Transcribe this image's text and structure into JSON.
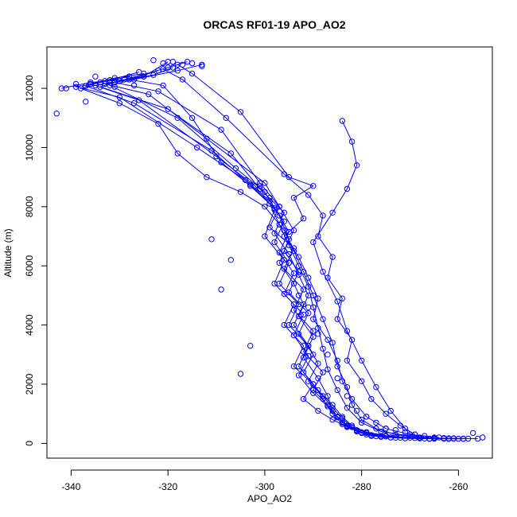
{
  "chart_data": {
    "type": "scatter",
    "title": "ORCAS RF01-19 APO_AO2",
    "xlabel": "APO_AO2",
    "ylabel": "Altitude (m)",
    "xlim": [
      -345,
      -253
    ],
    "ylim": [
      -500,
      13400
    ],
    "x_ticks": [
      -340,
      -320,
      -300,
      -280,
      -260
    ],
    "y_ticks": [
      0,
      2000,
      4000,
      6000,
      8000,
      10000,
      12000
    ],
    "x_tick_labels": [
      "-340",
      "-320",
      "-300",
      "-280",
      "-260"
    ],
    "y_tick_labels": [
      "0",
      "2000",
      "4000",
      "6000",
      "8000",
      "10000",
      "12000"
    ],
    "grid": false,
    "legend": "none",
    "series_color": "#0000ff",
    "marker": "open-circle",
    "connected": true,
    "series": [
      {
        "x": [
          -320,
          -325,
          -335,
          -338,
          -330,
          -322,
          -318,
          -312,
          -305,
          -300,
          -296,
          -294,
          -292,
          -290,
          -288,
          -286,
          -285,
          -283,
          -282,
          -280,
          -277,
          -273,
          -268,
          -262
        ],
        "y": [
          12900,
          12400,
          12100,
          12000,
          11500,
          10800,
          9800,
          9000,
          8500,
          8000,
          7200,
          6500,
          5800,
          5000,
          4200,
          3400,
          2600,
          1900,
          1300,
          800,
          500,
          300,
          200,
          150
        ]
      },
      {
        "x": [
          -342,
          -336,
          -328,
          -321,
          -315,
          -309,
          -303,
          -299,
          -297,
          -295,
          -293,
          -291,
          -290,
          -289,
          -288,
          -287,
          -285,
          -283,
          -280,
          -276,
          -270,
          -265,
          -258
        ],
        "y": [
          12000,
          12200,
          12300,
          12100,
          11000,
          9500,
          8700,
          8100,
          7400,
          6700,
          6000,
          5300,
          4600,
          3900,
          3200,
          2500,
          1800,
          1200,
          700,
          400,
          250,
          180,
          160
        ]
      },
      {
        "x": [
          -318,
          -315,
          -305,
          -295,
          -290,
          -294,
          -292,
          -296,
          -293,
          -291,
          -289,
          -290,
          -287,
          -285,
          -284,
          -282,
          -279,
          -275,
          -270,
          -264
        ],
        "y": [
          12800,
          12500,
          11200,
          9000,
          8700,
          8300,
          7600,
          7000,
          6300,
          5600,
          4900,
          4200,
          3500,
          2800,
          2100,
          1500,
          900,
          500,
          300,
          200
        ]
      },
      {
        "x": [
          -322,
          -328,
          -333,
          -324,
          -312,
          -300,
          -297,
          -299,
          -294,
          -296,
          -292,
          -294,
          -290,
          -292,
          -288,
          -290,
          -287,
          -285,
          -283,
          -281,
          -278,
          -274,
          -268,
          -262,
          -256
        ],
        "y": [
          12600,
          12300,
          12150,
          11800,
          10300,
          8800,
          8000,
          7300,
          6600,
          5900,
          5200,
          4500,
          3800,
          3100,
          2400,
          1800,
          1300,
          900,
          600,
          400,
          250,
          200,
          180,
          170,
          160
        ]
      },
      {
        "x": [
          -316,
          -320,
          -330,
          -334,
          -320,
          -307,
          -301,
          -296,
          -298,
          -295,
          -293,
          -291,
          -293,
          -290,
          -292,
          -289,
          -287,
          -286,
          -284,
          -281,
          -279,
          -276,
          -271,
          -266
        ],
        "y": [
          12900,
          12700,
          12250,
          12050,
          11300,
          9800,
          8600,
          7800,
          7100,
          6400,
          5700,
          5000,
          4300,
          3600,
          2900,
          2200,
          1600,
          1100,
          700,
          450,
          300,
          220,
          170,
          150
        ]
      },
      {
        "x": [
          -325,
          -331,
          -336,
          -326,
          -310,
          -302,
          -298,
          -300,
          -296,
          -298,
          -294,
          -296,
          -292,
          -294,
          -290,
          -292,
          -289,
          -286,
          -283,
          -280,
          -276,
          -272,
          -266,
          -259
        ],
        "y": [
          12500,
          12350,
          12150,
          11600,
          9700,
          8700,
          7900,
          7000,
          6200,
          5400,
          4700,
          4000,
          3300,
          2600,
          2000,
          1500,
          1100,
          800,
          550,
          350,
          250,
          190,
          160,
          150
        ]
      },
      {
        "x": [
          -313,
          -318,
          -327,
          -332,
          -318,
          -306,
          -300,
          -297,
          -295,
          -297,
          -294,
          -292,
          -294,
          -291,
          -289,
          -291,
          -288,
          -286,
          -284,
          -282,
          -279,
          -275,
          -269,
          -263
        ],
        "y": [
          12800,
          12600,
          12300,
          12100,
          11000,
          9300,
          8500,
          7700,
          6900,
          6100,
          5400,
          4700,
          4000,
          3300,
          2700,
          2100,
          1600,
          1200,
          850,
          550,
          350,
          230,
          180,
          160
        ]
      },
      {
        "x": [
          -328,
          -334,
          -339,
          -330,
          -314,
          -304,
          -299,
          -296,
          -298,
          -295,
          -297,
          -293,
          -295,
          -291,
          -293,
          -290,
          -288,
          -286,
          -284,
          -281,
          -278,
          -274,
          -268,
          -261
        ],
        "y": [
          12400,
          12200,
          12050,
          11700,
          10000,
          8900,
          8200,
          7500,
          6800,
          6100,
          5400,
          4700,
          4000,
          3300,
          2600,
          2000,
          1500,
          1000,
          650,
          420,
          280,
          200,
          170,
          160
        ]
      },
      {
        "x": [
          -319,
          -323,
          -331,
          -322,
          -309,
          -301,
          -297,
          -294,
          -296,
          -293,
          -295,
          -291,
          -293,
          -290,
          -292,
          -289,
          -286,
          -284,
          -282,
          -279,
          -275,
          -270,
          -265
        ],
        "y": [
          12700,
          12450,
          12200,
          11900,
          10600,
          8800,
          8000,
          7200,
          6500,
          5800,
          5100,
          4400,
          3700,
          3000,
          2400,
          1800,
          1300,
          900,
          600,
          380,
          260,
          190,
          160
        ]
      },
      {
        "x": [
          -326,
          -332,
          -337,
          -327,
          -311,
          -303,
          -298,
          -295,
          -297,
          -294,
          -296,
          -292,
          -294,
          -291,
          -293,
          -290,
          -287,
          -285,
          -283,
          -280,
          -277,
          -273,
          -267,
          -260
        ],
        "y": [
          12550,
          12280,
          12080,
          11500,
          9900,
          8750,
          7950,
          7150,
          6450,
          5750,
          5050,
          4350,
          3650,
          2950,
          2300,
          1700,
          1250,
          880,
          580,
          370,
          240,
          190,
          165,
          155
        ]
      },
      {
        "x": [
          -321,
          -317,
          -308,
          -296,
          -291,
          -288,
          -289,
          -286,
          -287,
          -284,
          -285,
          -282,
          -283,
          -280,
          -278,
          -275,
          -272,
          -269
        ],
        "y": [
          12650,
          12300,
          11000,
          9100,
          8400,
          7700,
          7000,
          6300,
          5600,
          4900,
          4200,
          3500,
          2800,
          2100,
          1500,
          1000,
          600,
          300
        ]
      },
      {
        "x": [
          -284,
          -282,
          -281,
          -283,
          -286,
          -290,
          -288,
          -285,
          -283,
          -280,
          -277,
          -274,
          -271
        ],
        "y": [
          10900,
          10200,
          9400,
          8600,
          7800,
          6800,
          5800,
          4800,
          3800,
          2800,
          1900,
          1100,
          500
        ]
      }
    ],
    "scatter_points": {
      "x": [
        -343,
        -341,
        -339,
        -337,
        -335,
        -333,
        -331,
        -329,
        -327,
        -325,
        -323,
        -321,
        -319,
        -317,
        -315,
        -313,
        -311,
        -309,
        -307,
        -305,
        -303,
        -301,
        -299,
        -297,
        -295,
        -293,
        -291,
        -289,
        -287,
        -285,
        -283,
        -281,
        -279,
        -277,
        -275,
        -273,
        -271,
        -269,
        -267,
        -265,
        -263,
        -261,
        -259,
        -257,
        -255
      ],
      "y": [
        11150,
        12000,
        12150,
        11550,
        12400,
        12250,
        12050,
        12300,
        12100,
        12400,
        12950,
        12850,
        12900,
        12800,
        12850,
        12750,
        6900,
        5200,
        6200,
        2350,
        3300,
        8700,
        8300,
        7400,
        6100,
        5000,
        4600,
        3700,
        3000,
        2200,
        1600,
        1100,
        900,
        700,
        500,
        450,
        380,
        300,
        250,
        200,
        180,
        170,
        160,
        350,
        200
      ]
    }
  }
}
